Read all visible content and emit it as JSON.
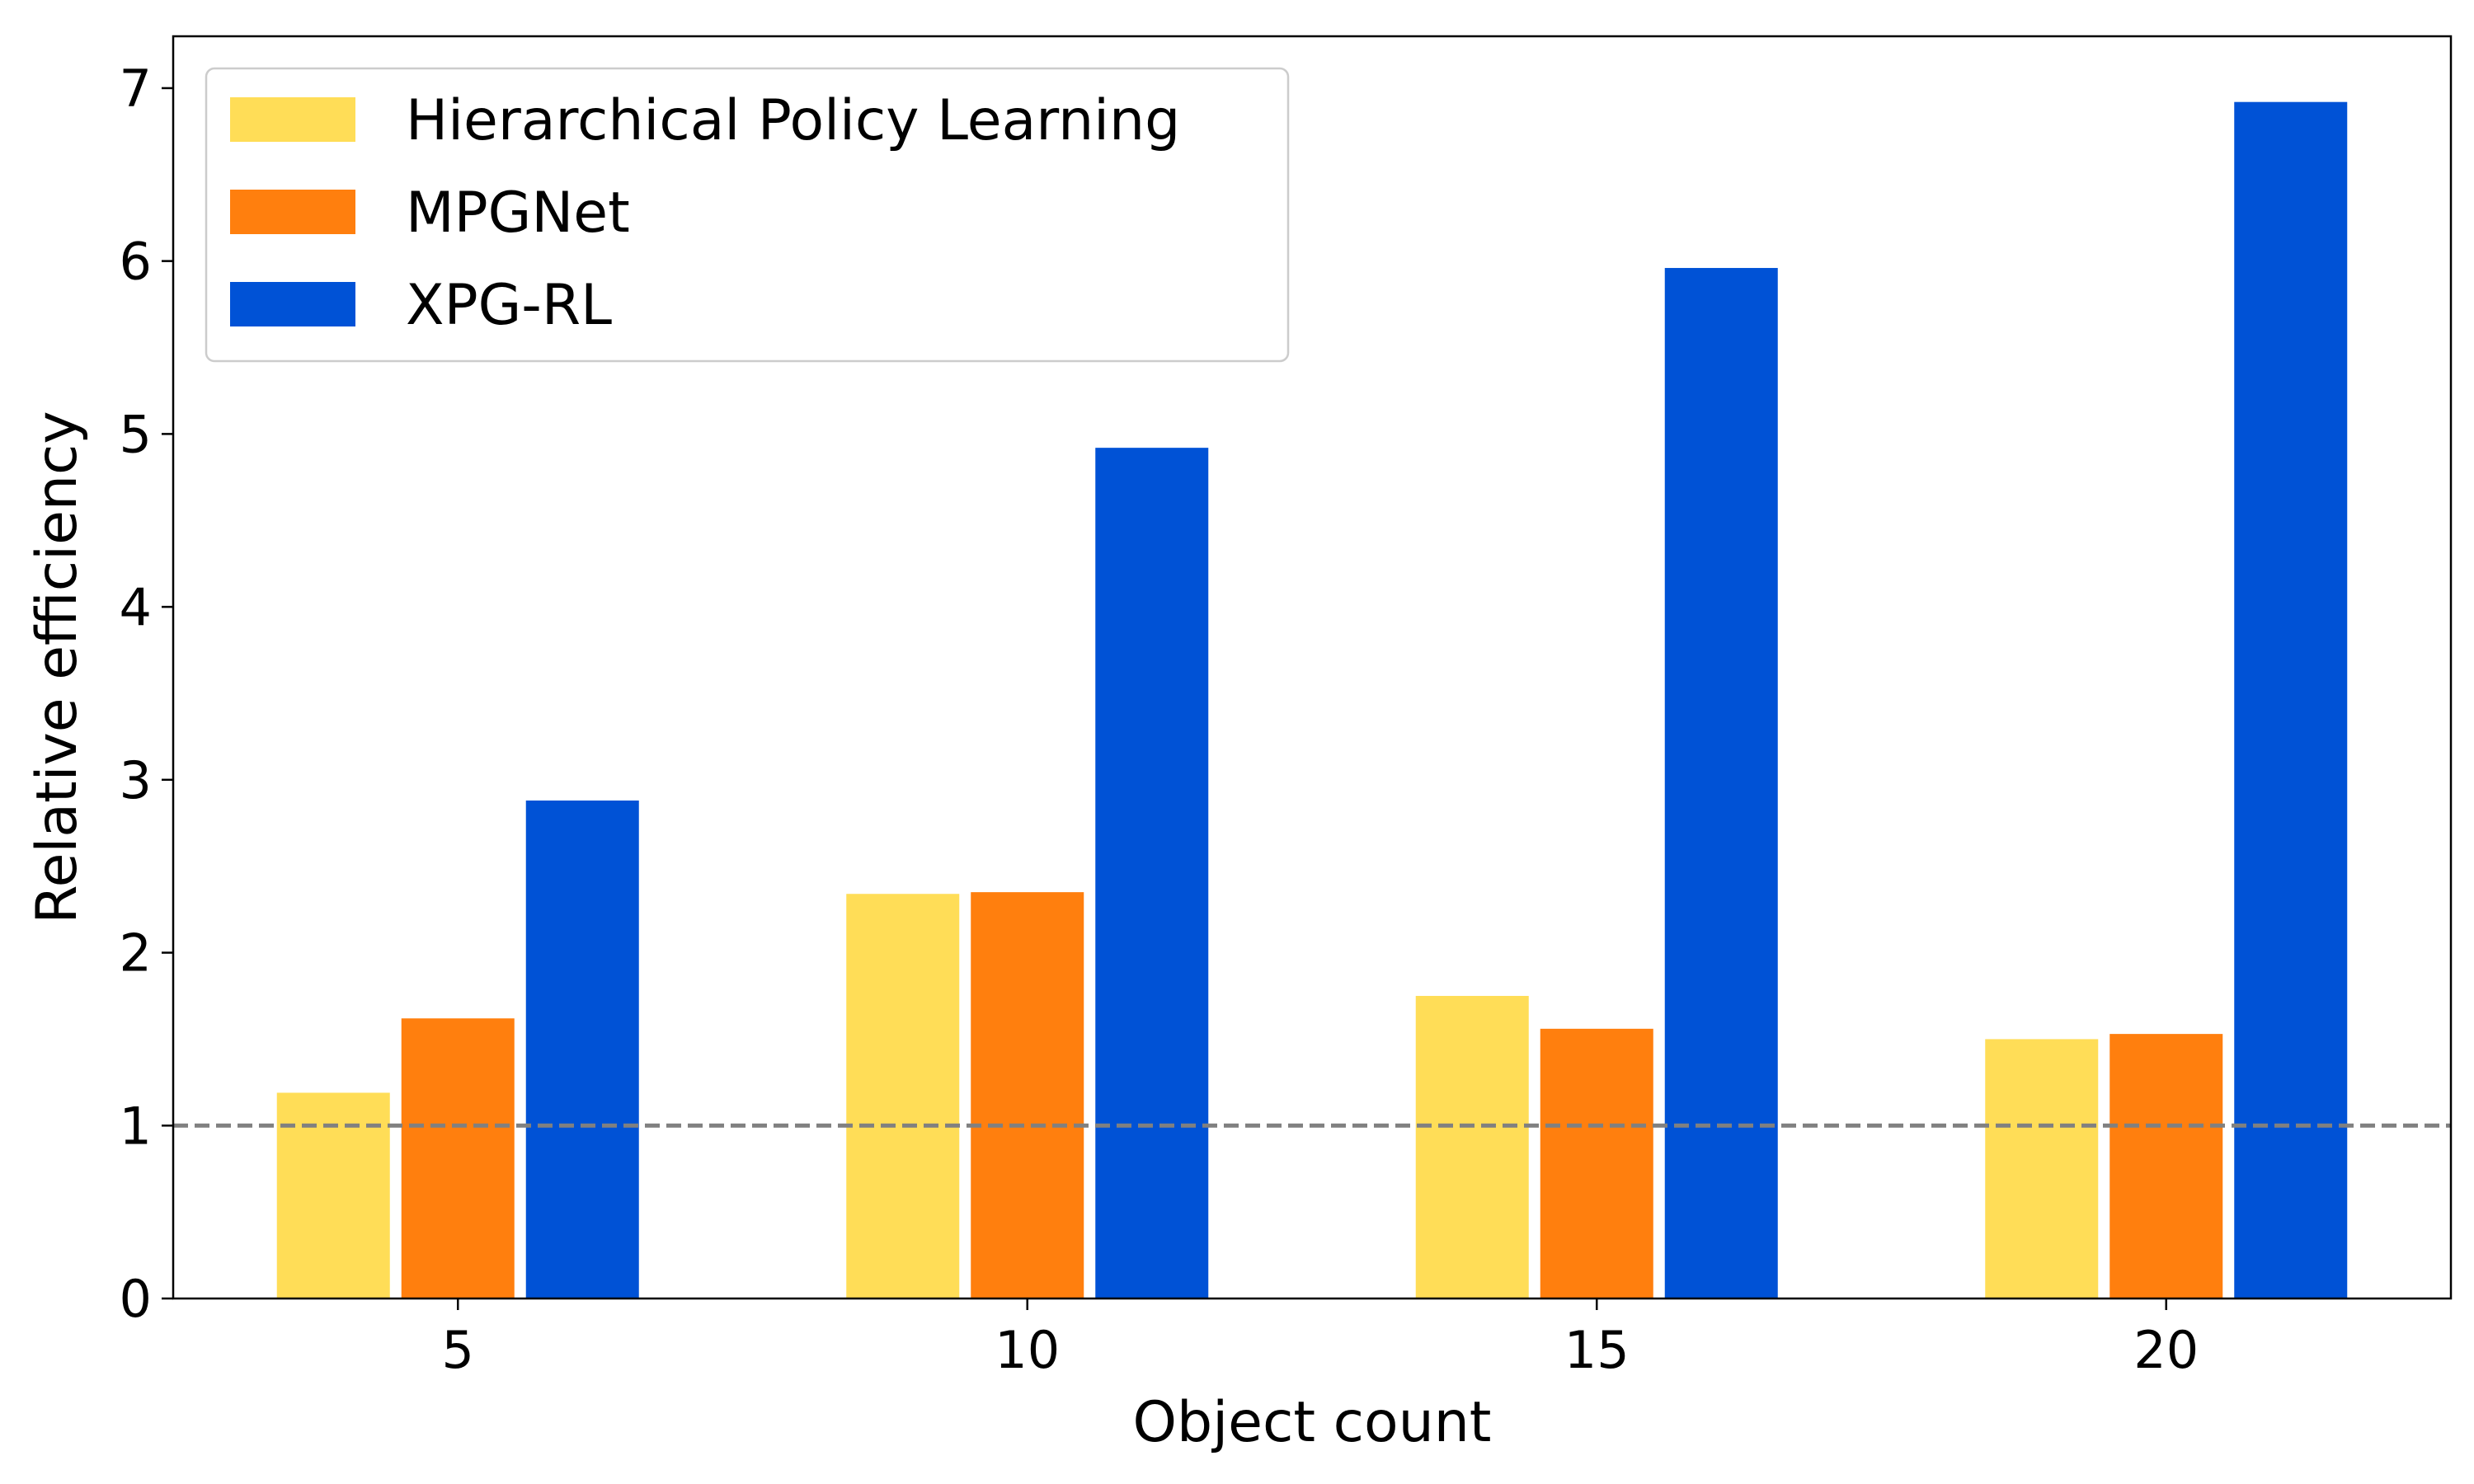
{
  "chart_data": {
    "type": "bar",
    "xlabel": "Object count",
    "ylabel": "Relative efficiency",
    "categories": [
      "5",
      "10",
      "15",
      "20"
    ],
    "ylim": [
      0,
      7.3
    ],
    "yticks": [
      "0",
      "1",
      "2",
      "3",
      "4",
      "5",
      "6",
      "7"
    ],
    "grid": false,
    "legend_position": "top-left",
    "reference_line": {
      "y": 1,
      "style": "dashed",
      "color": "#808080"
    },
    "series": [
      {
        "name": "Hierarchical Policy Learning",
        "color": "#FFDD57",
        "values": [
          1.19,
          2.34,
          1.75,
          1.5
        ]
      },
      {
        "name": "MPGNet",
        "color": "#FF7F0E",
        "values": [
          1.62,
          2.35,
          1.56,
          1.53
        ]
      },
      {
        "name": "XPG-RL",
        "color": "#0052D6",
        "values": [
          2.88,
          4.92,
          5.96,
          6.92
        ]
      }
    ]
  }
}
